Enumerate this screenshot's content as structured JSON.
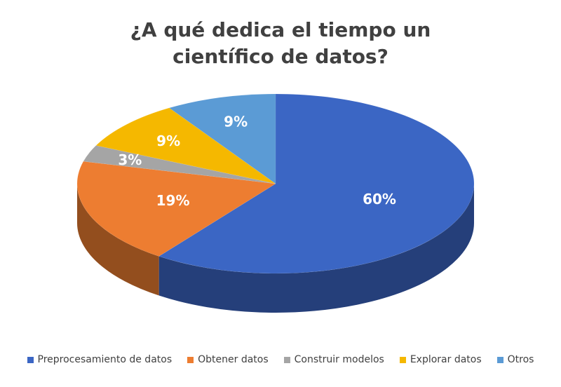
{
  "chart_data": {
    "type": "pie",
    "title": "¿A qué dedica el tiempo un científico de datos?",
    "title_lines": [
      "¿A qué dedica el tiempo un",
      "científico de datos?"
    ],
    "three_d": true,
    "legend_position": "bottom",
    "slices": [
      {
        "name": "Preprocesamiento de datos",
        "value": 60,
        "label": "60%",
        "color": "#3B66C4"
      },
      {
        "name": "Obtener datos",
        "value": 19,
        "label": "19%",
        "color": "#ED7D31"
      },
      {
        "name": "Construir modelos",
        "value": 3,
        "label": "3%",
        "color": "#A5A5A5"
      },
      {
        "name": "Explorar datos",
        "value": 9,
        "label": "9%",
        "color": "#F5B800"
      },
      {
        "name": "Otros",
        "value": 9,
        "label": "9%",
        "color": "#5B9BD5"
      }
    ]
  }
}
